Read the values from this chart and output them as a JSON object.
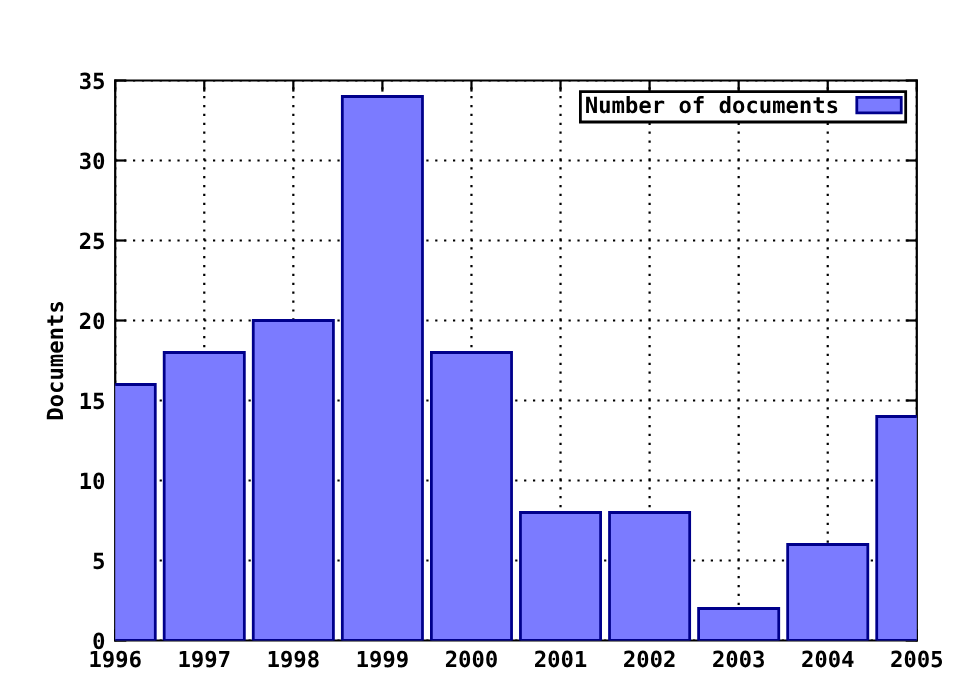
{
  "chart_data": {
    "type": "bar",
    "ylabel": "Documents",
    "x": [
      1996,
      1997,
      1998,
      1999,
      2000,
      2001,
      2002,
      2003,
      2004,
      2005
    ],
    "series": [
      {
        "name": "Number of documents",
        "color": "#7b7bff",
        "values": [
          16,
          18,
          20,
          34,
          18,
          8,
          8,
          2,
          6,
          14
        ]
      }
    ],
    "xlim": [
      1996,
      2005
    ],
    "xticks": [
      1996,
      1997,
      1998,
      1999,
      2000,
      2001,
      2002,
      2003,
      2004,
      2005
    ],
    "ylim": [
      0,
      35
    ],
    "yticks": [
      0,
      5,
      10,
      15,
      20,
      25,
      30,
      35
    ],
    "grid": true,
    "legend": "top right"
  }
}
